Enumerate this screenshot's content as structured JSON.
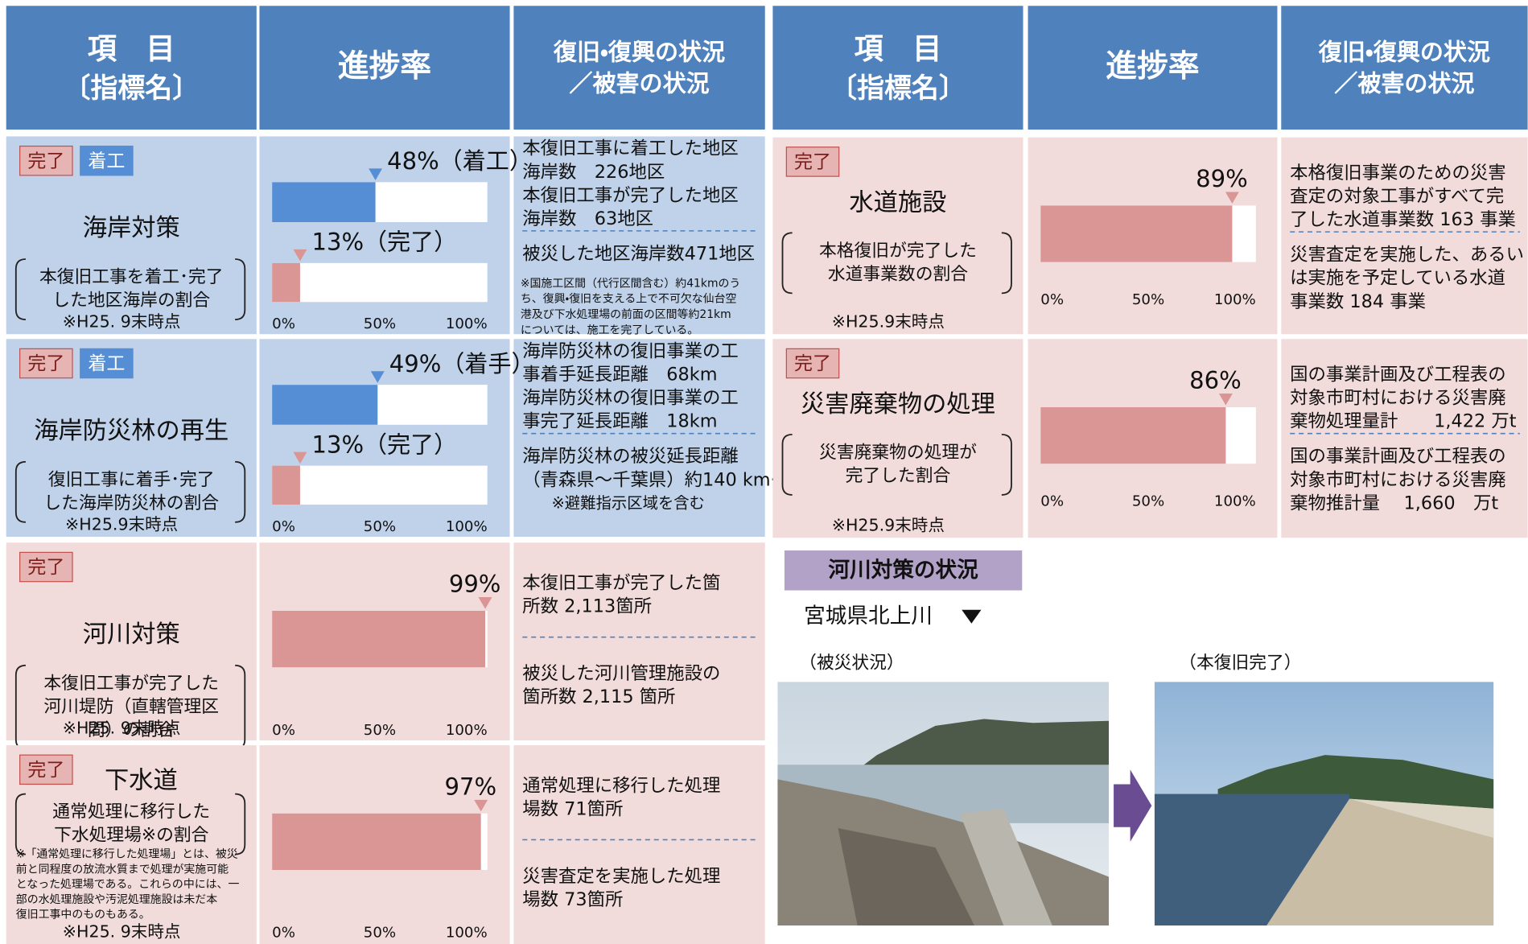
{
  "header": {
    "item": [
      "項　目",
      "〔指標名〕"
    ],
    "progress": "進捗率",
    "status": [
      "復旧・復興の状況",
      "／被害の状況"
    ]
  },
  "axis_ticks": [
    {
      "value": 0,
      "label": "0%"
    },
    {
      "value": 50,
      "label": "50%"
    },
    {
      "value": 100,
      "label": "100%"
    }
  ],
  "left_rows": [
    {
      "tags": [
        "完了",
        "着工"
      ],
      "name": "海岸対策",
      "description": [
        "本復旧工事を着工･完了",
        "した地区海岸の割合"
      ],
      "as_of": "※H25. 9末時点",
      "bars": [
        {
          "value": 48,
          "label": "48%（着工）",
          "color": "#558ed5"
        },
        {
          "value": 13,
          "label": "13%（完了）",
          "color": "#d99694"
        }
      ],
      "status": [
        [
          "本復旧工事に着工した地区",
          "海岸数　226地区",
          "本復旧工事が完了した地区",
          "海岸数　63地区"
        ],
        [
          "被災した地区海岸数471地区"
        ]
      ],
      "status_note": [
        "※国施工区間（代行区間含む）約41kmのう",
        "ち、復興・復旧を支える上で不可欠な仙台空",
        "港及び下水処理場の前面の区間等約21km",
        "については、施工を完了している。"
      ]
    },
    {
      "tags": [
        "完了",
        "着工"
      ],
      "name": "海岸防災林の再生",
      "description": [
        "復旧工事に着手･完了",
        "した海岸防災林の割合"
      ],
      "as_of": "※H25.9末時点",
      "bars": [
        {
          "value": 49,
          "label": "49%（着手）",
          "color": "#558ed5"
        },
        {
          "value": 13,
          "label": "13%（完了）",
          "color": "#d99694"
        }
      ],
      "status": [
        [
          "海岸防災林の復旧事業の工",
          "事着手延長距離　68km",
          "海岸防災林の復旧事業の工",
          "事完了延長距離　18km"
        ],
        [
          "海岸防災林の被災延長距離",
          "（青森県～千葉県）約140 km※"
        ]
      ],
      "status_note": [
        "　　※避難指示区域を含む"
      ]
    },
    {
      "tags": [
        "完了"
      ],
      "name": "河川対策",
      "description": [
        "本復旧工事が完了した",
        "河川堤防（直轄管理区",
        "間）の割合"
      ],
      "as_of": "※H25. 9末時点",
      "bars": [
        {
          "value": 99,
          "label": "99%",
          "color": "#d99694"
        }
      ],
      "status": [
        [
          "本復旧工事が完了した箇",
          "所数  2,113箇所"
        ],
        [
          "被災した河川管理施設の",
          "箇所数  2,115 箇所"
        ]
      ]
    },
    {
      "tags": [
        "完了"
      ],
      "name": "下水道",
      "description": [
        "通常処理に移行した",
        "下水処理場※の割合"
      ],
      "footnote": [
        "※「通常処理に移行した処理場」とは、被災",
        "前と同程度の放流水質まで処理が実施可能",
        "となった処理場である。これらの中には、一",
        "部の水処理施設や汚泥処理施設は未だ本",
        "復旧工事中のものもある。"
      ],
      "as_of": "※H25. 9末時点",
      "bars": [
        {
          "value": 97,
          "label": "97%",
          "color": "#d99694"
        }
      ],
      "status": [
        [
          "通常処理に移行した処理",
          "場数  71箇所"
        ],
        [
          "災害査定を実施した処理",
          "場数  73箇所"
        ]
      ]
    }
  ],
  "right_rows": [
    {
      "tags": [
        "完了"
      ],
      "name": "水道施設",
      "description": [
        "本格復旧が完了した",
        "水道事業数の割合"
      ],
      "as_of": "※H25.9末時点",
      "bars": [
        {
          "value": 89,
          "label": "89%",
          "color": "#d99694"
        }
      ],
      "status": [
        [
          "本格復旧事業のための災害",
          "査定の対象工事がすべて完",
          "了した水道事業数  163 事業"
        ],
        [
          "災害査定を実施した、あるい",
          "は実施を予定している水道",
          "事業数  184 事業"
        ]
      ]
    },
    {
      "tags": [
        "完了"
      ],
      "name": "災害廃棄物の処理",
      "description": [
        "災害廃棄物の処理が",
        "完了した割合"
      ],
      "as_of": "※H25.9末時点",
      "bars": [
        {
          "value": 86,
          "label": "86%",
          "color": "#d99694"
        }
      ],
      "status": [
        [
          "国の事業計画及び工程表の",
          "対象市町村における災害廃",
          "棄物処理量計　　1,422 万t"
        ],
        [
          "国の事業計画及び工程表の",
          "対象市町村における災害廃",
          "棄物推計量　 1,660　万t"
        ]
      ]
    }
  ],
  "river": {
    "title": "河川対策の状況",
    "location": "宮城県北上川",
    "before": "（被災状況）",
    "after": "（本復旧完了）"
  }
}
